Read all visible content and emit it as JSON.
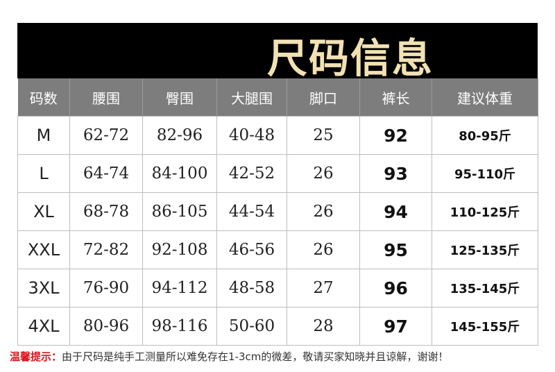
{
  "title": "尺码信息",
  "headers": [
    "码数",
    "腰围",
    "臀围",
    "大腿围",
    "脚口",
    "裤长",
    "建议体重"
  ],
  "rows": [
    [
      "M",
      "62-72",
      "82-96",
      "40-48",
      "25",
      "92",
      "80-95斤"
    ],
    [
      "L",
      "64-74",
      "84-100",
      "42-52",
      "26",
      "93",
      "95-110斤"
    ],
    [
      "XL",
      "68-78",
      "86-105",
      "44-54",
      "26",
      "94",
      "110-125斤"
    ],
    [
      "XXL",
      "72-82",
      "92-108",
      "46-56",
      "26",
      "95",
      "125-135斤"
    ],
    [
      "3XL",
      "76-90",
      "94-112",
      "48-58",
      "27",
      "96",
      "135-145斤"
    ],
    [
      "4XL",
      "80-96",
      "98-116",
      "50-60",
      "28",
      "97",
      "145-155斤"
    ]
  ],
  "note": {
    "lead": "温馨提示：",
    "text": "由于尺码是纯手工测量所以难免存在1-3cm的微差，敬请买家知晓并且谅解，谢谢！"
  },
  "colors": {
    "banner": "#000000",
    "title": "#f1e1b3",
    "header": "#7d7d7d",
    "note_lead": "#d8141b"
  }
}
